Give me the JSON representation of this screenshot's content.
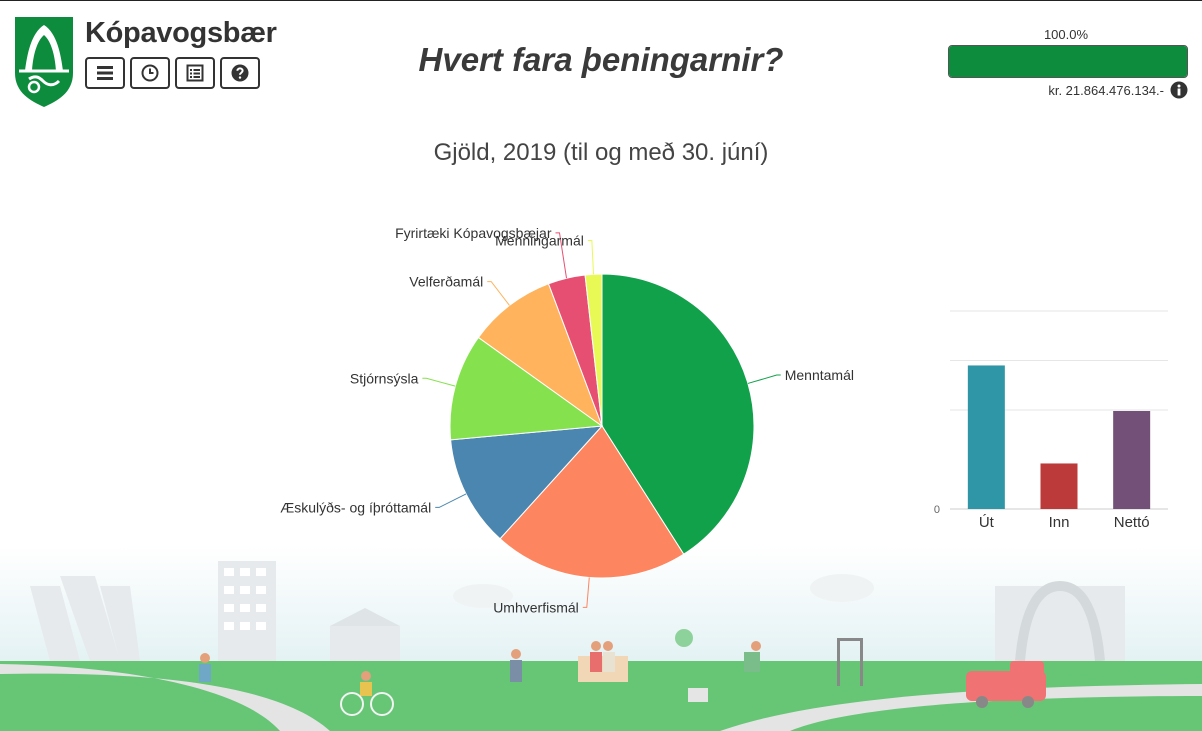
{
  "header": {
    "brand": "Kópavogsbær",
    "page_title": "Hvert fara þeningarnir?",
    "toolbar": [
      {
        "name": "menu-icon"
      },
      {
        "name": "clock-icon"
      },
      {
        "name": "list-icon"
      },
      {
        "name": "help-icon"
      }
    ],
    "progress": {
      "label": "100.0%",
      "value": 1.0,
      "color": "#0d8c3e",
      "total": "kr. 21.864.476.134.-"
    }
  },
  "chart_title": "Gjöld, 2019 (til og með 30. júní)",
  "chart_data": [
    {
      "type": "pie",
      "title": "Gjöld, 2019 (til og með 30. júní)",
      "slices": [
        {
          "label": "Menntamál",
          "value": 41.5,
          "color": "#12a14b"
        },
        {
          "label": "Umhverfismál",
          "value": 21.0,
          "color": "#fd8560"
        },
        {
          "label": "Æskulýðs- og íþróttamál",
          "value": 12.0,
          "color": "#4a86af"
        },
        {
          "label": "Stjórnsýsla",
          "value": 11.5,
          "color": "#86e14f"
        },
        {
          "label": "Velferðamál",
          "value": 9.5,
          "color": "#feb35c"
        },
        {
          "label": "Fyrirtæki Kópavogsbæjar",
          "value": 4.0,
          "color": "#e74f72"
        },
        {
          "label": "Menningarmál",
          "value": 1.8,
          "color": "#e8f955"
        }
      ]
    },
    {
      "type": "bar",
      "categories": [
        "Út",
        "Inn",
        "Nettó"
      ],
      "values": [
        145,
        46,
        99
      ],
      "colors": [
        "#2e96a6",
        "#bd3a3a",
        "#735077"
      ],
      "ylim": [
        0,
        200
      ],
      "y_tick_labels": [
        "0"
      ],
      "grid": true
    }
  ],
  "scene": {
    "palette": {
      "sky": "#eef7f8",
      "grass": "#66c676",
      "path": "#e4e4e4"
    }
  }
}
